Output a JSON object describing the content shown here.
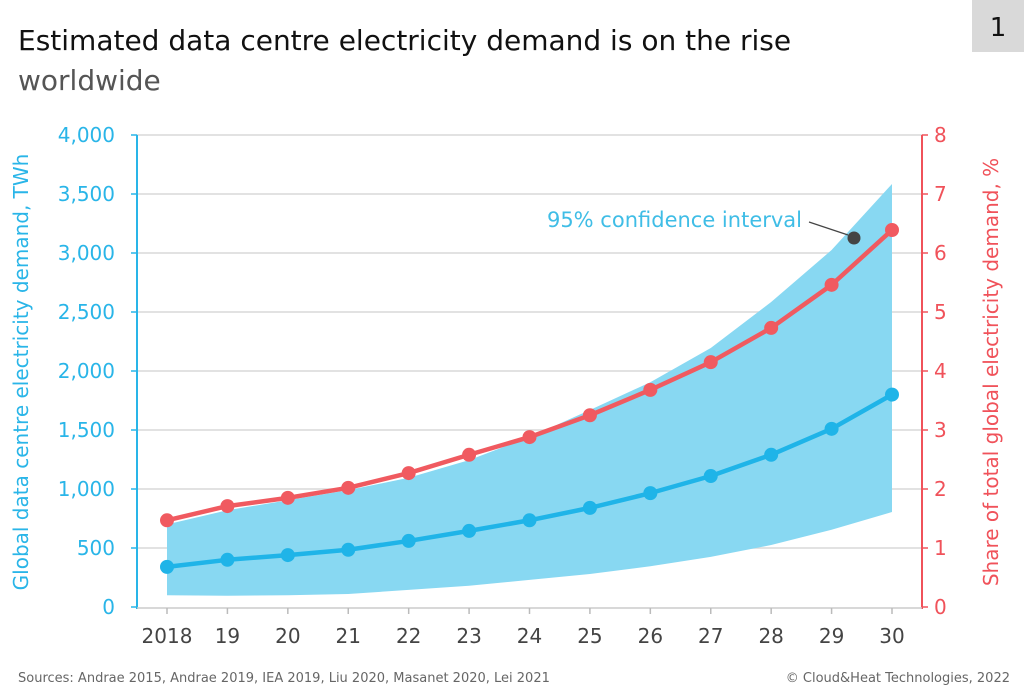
{
  "page_number": "1",
  "colors": {
    "blue": "#1fb4e8",
    "band": "#88d8f2",
    "red": "#f05a60",
    "annotation_dot": "#444444"
  },
  "footer": {
    "sources": "Sources: Andrae 2015, Andrae 2019, IEA 2019, Liu 2020, Masanet 2020, Lei 2021",
    "copyright": "© Cloud&Heat Technologies, 2022"
  },
  "chart_data": {
    "type": "line",
    "title": "Estimated data centre electricity demand is on the rise",
    "subtitle": "worldwide",
    "categories": [
      "2018",
      "19",
      "20",
      "21",
      "22",
      "23",
      "24",
      "25",
      "26",
      "27",
      "28",
      "29",
      "30"
    ],
    "ylabel": "Global data centre electricity demand, TWh",
    "ylabel_right": "Share of total global electricity demand, %",
    "ylim": [
      0,
      4000
    ],
    "ylim_right": [
      0,
      8
    ],
    "yticks": [
      "0",
      "500",
      "1,000",
      "1,500",
      "2,000",
      "2,500",
      "3,000",
      "3,500",
      "4,000"
    ],
    "yticks_right": [
      "0",
      "1",
      "2",
      "3",
      "4",
      "5",
      "6",
      "7",
      "8"
    ],
    "grid": true,
    "series": [
      {
        "axis": "left",
        "color": "#1fb4e8",
        "values": [
          340,
          400,
          440,
          485,
          560,
          645,
          735,
          840,
          965,
          1110,
          1290,
          1510,
          1800
        ]
      },
      {
        "axis": "right",
        "color": "#f05a60",
        "values": [
          1.47,
          1.71,
          1.85,
          2.02,
          2.27,
          2.58,
          2.88,
          3.25,
          3.68,
          4.15,
          4.73,
          5.46,
          6.39
        ]
      }
    ],
    "band": {
      "label": "95% confidence interval",
      "axis": "left",
      "upper": [
        700,
        820,
        905,
        990,
        1095,
        1245,
        1440,
        1670,
        1905,
        2195,
        2585,
        3025,
        3585
      ],
      "lower": [
        100,
        95,
        100,
        110,
        145,
        180,
        230,
        280,
        345,
        425,
        525,
        655,
        805
      ]
    }
  }
}
